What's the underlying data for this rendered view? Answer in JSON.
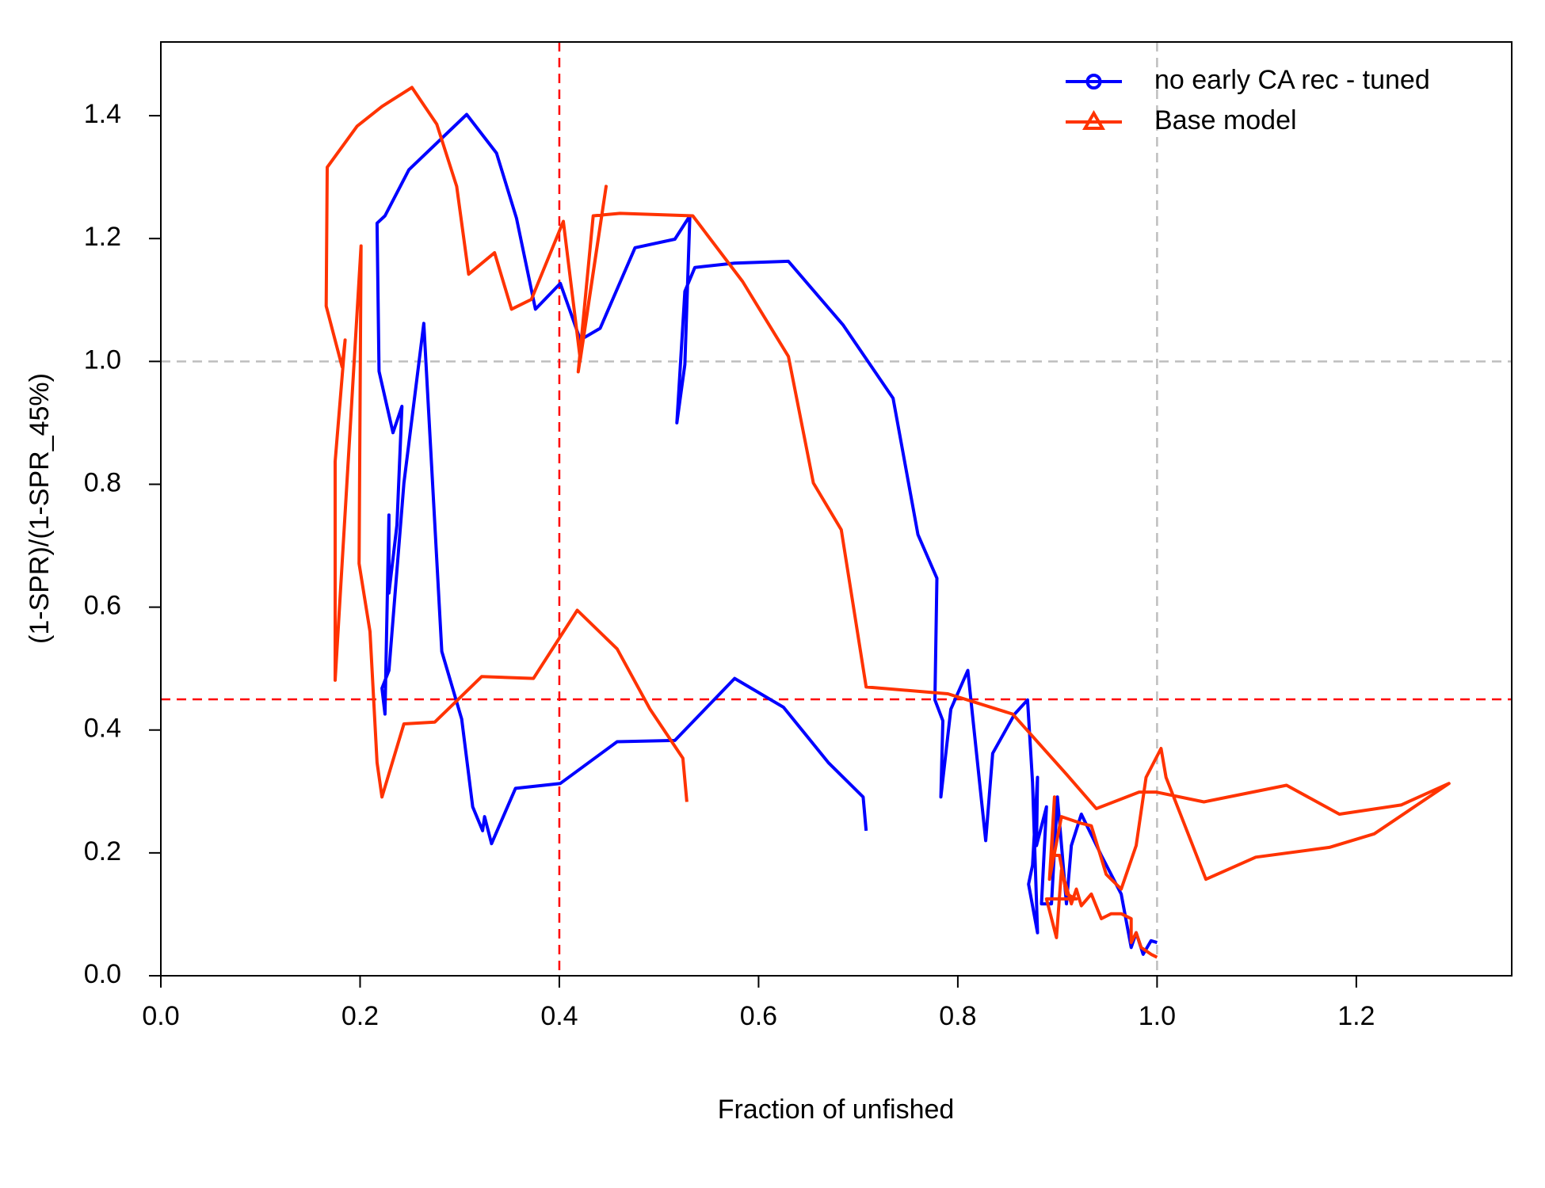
{
  "chart_data": {
    "type": "line",
    "xlabel": "Fraction of unfished",
    "ylabel": "(1-SPR)/(1-SPR_45%)",
    "xlim": [
      0,
      1.356
    ],
    "ylim": [
      0,
      1.52
    ],
    "xticks": [
      {
        "value": 0,
        "label": "0.0"
      },
      0.2,
      0.4,
      0.6,
      0.8,
      {
        "value": 1,
        "label": "1.0"
      },
      1.2
    ],
    "yticks": [
      {
        "value": 0,
        "label": "0.0"
      },
      0.2,
      0.4,
      0.6,
      0.8,
      {
        "value": 1,
        "label": "1.0"
      },
      1.2,
      1.4
    ],
    "hlines": [
      {
        "value": 1,
        "color": "#bebebe"
      },
      {
        "value": 0.45,
        "color": "#ff0000"
      }
    ],
    "vlines": [
      {
        "value": 1,
        "color": "#bebebe"
      },
      {
        "value": 0.4,
        "color": "#ff0000"
      }
    ],
    "legend": "top-right",
    "series": [
      {
        "name": "no early CA rec - tuned",
        "color": "#0000ff",
        "marker": "circle",
        "x": [
          1.0,
          0.994,
          0.986,
          0.979,
          0.974,
          0.964,
          0.944,
          0.924,
          0.914,
          0.909,
          0.9,
          0.894,
          0.884,
          0.889,
          0.879,
          0.88,
          0.875,
          0.871,
          0.88,
          0.875,
          0.87,
          0.857,
          0.835,
          0.828,
          0.81,
          0.793,
          0.783,
          0.785,
          0.777,
          0.779,
          0.76,
          0.735,
          0.685,
          0.63,
          0.576,
          0.536,
          0.526,
          0.518,
          0.526,
          0.531,
          0.516,
          0.476,
          0.441,
          0.421,
          0.401,
          0.376,
          0.357,
          0.337,
          0.307,
          0.249,
          0.225,
          0.217,
          0.219,
          0.233,
          0.242,
          0.237,
          0.229,
          0.229,
          0.225,
          0.222,
          0.229,
          0.244,
          0.264,
          0.282,
          0.302,
          0.313,
          0.323,
          0.325,
          0.332,
          0.356,
          0.401,
          0.458,
          0.516,
          0.576,
          0.625,
          0.67,
          0.705,
          0.708
        ],
        "values": [
          0.054,
          0.057,
          0.035,
          0.07,
          0.046,
          0.133,
          0.196,
          0.263,
          0.212,
          0.117,
          0.291,
          0.117,
          0.117,
          0.275,
          0.212,
          0.323,
          0.18,
          0.149,
          0.07,
          0.315,
          0.449,
          0.426,
          0.362,
          0.22,
          0.497,
          0.434,
          0.291,
          0.415,
          0.449,
          0.647,
          0.718,
          0.94,
          1.059,
          1.163,
          1.16,
          1.153,
          1.114,
          0.9,
          0.995,
          1.237,
          1.199,
          1.185,
          1.054,
          1.035,
          1.127,
          1.085,
          1.233,
          1.339,
          1.402,
          1.312,
          1.237,
          1.225,
          0.984,
          0.884,
          0.927,
          0.734,
          0.623,
          0.75,
          0.426,
          0.468,
          0.497,
          0.802,
          1.062,
          0.528,
          0.418,
          0.275,
          0.236,
          0.259,
          0.215,
          0.305,
          0.313,
          0.381,
          0.383,
          0.484,
          0.437,
          0.347,
          0.291,
          0.236
        ]
      },
      {
        "name": "Base model",
        "color": "#ff3300",
        "marker": "triangle",
        "x": [
          1.0,
          0.994,
          0.984,
          0.979,
          0.974,
          0.974,
          0.964,
          0.954,
          0.944,
          0.934,
          0.924,
          0.919,
          0.914,
          0.904,
          0.899,
          0.889,
          0.919,
          0.909,
          0.902,
          0.894,
          0.897,
          0.892,
          0.904,
          0.924,
          0.934,
          0.949,
          0.964,
          0.979,
          0.989,
          1.004,
          1.009,
          1.049,
          1.099,
          1.173,
          1.218,
          1.293,
          1.245,
          1.183,
          1.13,
          1.047,
          0.999,
          0.982,
          0.939,
          0.909,
          0.855,
          0.79,
          0.708,
          0.683,
          0.655,
          0.63,
          0.584,
          0.534,
          0.461,
          0.434,
          0.419,
          0.447,
          0.421,
          0.404,
          0.372,
          0.352,
          0.335,
          0.309,
          0.297,
          0.277,
          0.252,
          0.222,
          0.197,
          0.167,
          0.166,
          0.182,
          0.185,
          0.175,
          0.175,
          0.201,
          0.199,
          0.21,
          0.217,
          0.222,
          0.244,
          0.275,
          0.322,
          0.374,
          0.418,
          0.458,
          0.491,
          0.524,
          0.528
        ],
        "values": [
          0.03,
          0.035,
          0.046,
          0.07,
          0.054,
          0.093,
          0.101,
          0.101,
          0.093,
          0.133,
          0.114,
          0.141,
          0.117,
          0.172,
          0.062,
          0.125,
          0.125,
          0.133,
          0.196,
          0.196,
          0.291,
          0.157,
          0.259,
          0.248,
          0.244,
          0.165,
          0.141,
          0.212,
          0.323,
          0.37,
          0.323,
          0.157,
          0.193,
          0.209,
          0.231,
          0.313,
          0.278,
          0.263,
          0.31,
          0.283,
          0.299,
          0.299,
          0.272,
          0.328,
          0.426,
          0.459,
          0.47,
          0.726,
          0.802,
          1.008,
          1.13,
          1.237,
          1.241,
          1.237,
          0.983,
          1.285,
          1.003,
          1.228,
          1.101,
          1.085,
          1.177,
          1.142,
          1.285,
          1.386,
          1.446,
          1.415,
          1.383,
          1.316,
          1.09,
          0.991,
          1.035,
          0.837,
          0.481,
          1.188,
          0.671,
          0.56,
          0.347,
          0.291,
          0.41,
          0.413,
          0.487,
          0.484,
          0.595,
          0.532,
          0.434,
          0.354,
          0.283
        ]
      }
    ]
  }
}
